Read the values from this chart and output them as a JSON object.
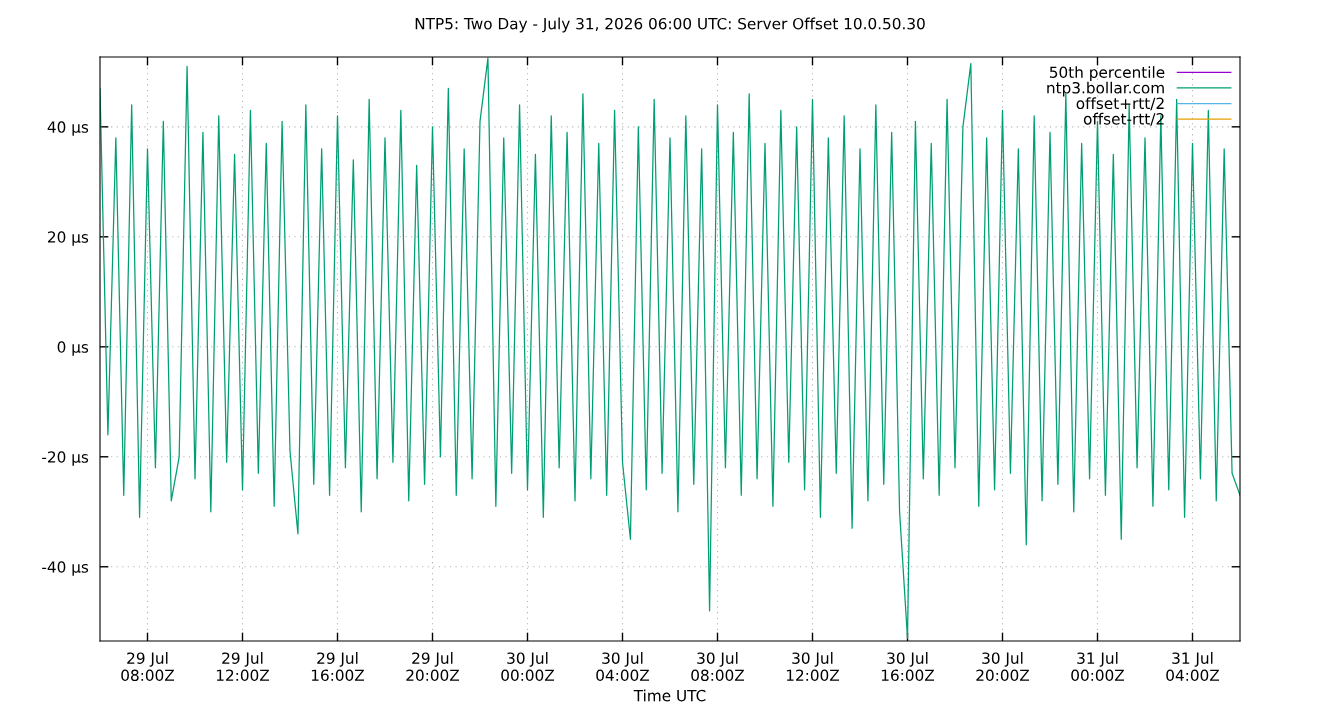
{
  "chart_data": {
    "type": "line",
    "title": "NTP5: Two Day - July 31, 2026 06:00 UTC: Server Offset 10.0.50.30",
    "xlabel": "Time UTC",
    "xlim": [
      "2026-07-29T06:00",
      "2026-07-31T06:00"
    ],
    "xticks": [
      {
        "value": "2026-07-29T08:00",
        "label": "29 Jul\n08:00Z"
      },
      {
        "value": "2026-07-29T12:00",
        "label": "29 Jul\n12:00Z"
      },
      {
        "value": "2026-07-29T16:00",
        "label": "29 Jul\n16:00Z"
      },
      {
        "value": "2026-07-29T20:00",
        "label": "29 Jul\n20:00Z"
      },
      {
        "value": "2026-07-30T00:00",
        "label": "30 Jul\n00:00Z"
      },
      {
        "value": "2026-07-30T04:00",
        "label": "30 Jul\n04:00Z"
      },
      {
        "value": "2026-07-30T08:00",
        "label": "30 Jul\n08:00Z"
      },
      {
        "value": "2026-07-30T12:00",
        "label": "30 Jul\n12:00Z"
      },
      {
        "value": "2026-07-30T16:00",
        "label": "30 Jul\n16:00Z"
      },
      {
        "value": "2026-07-30T20:00",
        "label": "30 Jul\n20:00Z"
      },
      {
        "value": "2026-07-31T00:00",
        "label": "31 Jul\n00:00Z"
      },
      {
        "value": "2026-07-31T04:00",
        "label": "31 Jul\n04:00Z"
      }
    ],
    "ylim": [
      -53.5,
      52.7
    ],
    "yticks": [
      {
        "value": -40,
        "label": "-40 µs"
      },
      {
        "value": -20,
        "label": "-20 µs"
      },
      {
        "value": 0,
        "label": "0 µs"
      },
      {
        "value": 20,
        "label": "20 µs"
      },
      {
        "value": 40,
        "label": "40 µs"
      }
    ],
    "grid": true,
    "legend": "top right",
    "line_style": "solid",
    "x": [
      "2026-07-29T06:00",
      "2026-07-29T06:20",
      "2026-07-29T06:40",
      "2026-07-29T07:00",
      "2026-07-29T07:20",
      "2026-07-29T07:40",
      "2026-07-29T08:00",
      "2026-07-29T08:20",
      "2026-07-29T08:40",
      "2026-07-29T09:00",
      "2026-07-29T09:20",
      "2026-07-29T09:40",
      "2026-07-29T10:00",
      "2026-07-29T10:20",
      "2026-07-29T10:40",
      "2026-07-29T11:00",
      "2026-07-29T11:20",
      "2026-07-29T11:40",
      "2026-07-29T12:00",
      "2026-07-29T12:20",
      "2026-07-29T12:40",
      "2026-07-29T13:00",
      "2026-07-29T13:20",
      "2026-07-29T13:40",
      "2026-07-29T14:00",
      "2026-07-29T14:20",
      "2026-07-29T14:40",
      "2026-07-29T15:00",
      "2026-07-29T15:20",
      "2026-07-29T15:40",
      "2026-07-29T16:00",
      "2026-07-29T16:20",
      "2026-07-29T16:40",
      "2026-07-29T17:00",
      "2026-07-29T17:20",
      "2026-07-29T17:40",
      "2026-07-29T18:00",
      "2026-07-29T18:20",
      "2026-07-29T18:40",
      "2026-07-29T19:00",
      "2026-07-29T19:20",
      "2026-07-29T19:40",
      "2026-07-29T20:00",
      "2026-07-29T20:20",
      "2026-07-29T20:40",
      "2026-07-29T21:00",
      "2026-07-29T21:20",
      "2026-07-29T21:40",
      "2026-07-29T22:00",
      "2026-07-29T22:20",
      "2026-07-29T22:40",
      "2026-07-29T23:00",
      "2026-07-29T23:20",
      "2026-07-29T23:40",
      "2026-07-30T00:00",
      "2026-07-30T00:20",
      "2026-07-30T00:40",
      "2026-07-30T01:00",
      "2026-07-30T01:20",
      "2026-07-30T01:40",
      "2026-07-30T02:00",
      "2026-07-30T02:20",
      "2026-07-30T02:40",
      "2026-07-30T03:00",
      "2026-07-30T03:20",
      "2026-07-30T03:40",
      "2026-07-30T04:00",
      "2026-07-30T04:20",
      "2026-07-30T04:40",
      "2026-07-30T05:00",
      "2026-07-30T05:20",
      "2026-07-30T05:40",
      "2026-07-30T06:00",
      "2026-07-30T06:20",
      "2026-07-30T06:40",
      "2026-07-30T07:00",
      "2026-07-30T07:20",
      "2026-07-30T07:40",
      "2026-07-30T08:00",
      "2026-07-30T08:20",
      "2026-07-30T08:40",
      "2026-07-30T09:00",
      "2026-07-30T09:20",
      "2026-07-30T09:40",
      "2026-07-30T10:00",
      "2026-07-30T10:20",
      "2026-07-30T10:40",
      "2026-07-30T11:00",
      "2026-07-30T11:20",
      "2026-07-30T11:40",
      "2026-07-30T12:00",
      "2026-07-30T12:20",
      "2026-07-30T12:40",
      "2026-07-30T13:00",
      "2026-07-30T13:20",
      "2026-07-30T13:40",
      "2026-07-30T14:00",
      "2026-07-30T14:20",
      "2026-07-30T14:40",
      "2026-07-30T15:00",
      "2026-07-30T15:20",
      "2026-07-30T15:40",
      "2026-07-30T16:00",
      "2026-07-30T16:20",
      "2026-07-30T16:40",
      "2026-07-30T17:00",
      "2026-07-30T17:20",
      "2026-07-30T17:40",
      "2026-07-30T18:00",
      "2026-07-30T18:20",
      "2026-07-30T18:40",
      "2026-07-30T19:00",
      "2026-07-30T19:20",
      "2026-07-30T19:40",
      "2026-07-30T20:00",
      "2026-07-30T20:20",
      "2026-07-30T20:40",
      "2026-07-30T21:00",
      "2026-07-30T21:20",
      "2026-07-30T21:40",
      "2026-07-30T22:00",
      "2026-07-30T22:20",
      "2026-07-30T22:40",
      "2026-07-30T23:00",
      "2026-07-30T23:20",
      "2026-07-30T23:40",
      "2026-07-31T00:00",
      "2026-07-31T00:20",
      "2026-07-31T00:40",
      "2026-07-31T01:00",
      "2026-07-31T01:20",
      "2026-07-31T01:40",
      "2026-07-31T02:00",
      "2026-07-31T02:20",
      "2026-07-31T02:40",
      "2026-07-31T03:00",
      "2026-07-31T03:20",
      "2026-07-31T03:40",
      "2026-07-31T04:00",
      "2026-07-31T04:20",
      "2026-07-31T04:40",
      "2026-07-31T05:00",
      "2026-07-31T05:20",
      "2026-07-31T05:40",
      "2026-07-31T06:00"
    ],
    "series": [
      {
        "name": "50th percentile",
        "color": "#9400d3",
        "values": [
          null,
          null,
          null,
          null,
          null,
          null,
          null,
          null,
          null,
          null,
          null,
          null,
          null,
          null,
          null,
          null,
          null,
          null,
          null,
          null,
          null,
          null,
          null,
          null,
          null,
          null,
          null,
          null,
          null,
          null,
          null,
          null,
          null,
          null,
          null,
          null,
          null,
          null,
          null,
          null,
          null,
          null,
          null,
          null,
          null,
          null,
          null,
          null,
          null,
          null,
          null,
          null,
          null,
          null,
          null,
          null,
          null,
          null,
          null,
          null,
          null,
          null,
          null,
          null,
          null,
          null,
          null,
          null,
          null,
          null,
          null,
          null,
          null,
          null,
          null,
          null,
          null,
          null,
          null,
          null,
          null,
          null,
          null,
          null,
          null,
          null,
          null,
          null,
          null,
          null,
          null,
          null,
          null,
          null,
          null,
          null,
          null,
          null,
          null,
          null,
          null,
          null,
          null,
          null,
          null,
          null,
          null,
          null,
          null,
          null,
          null,
          null,
          null,
          null,
          null,
          null,
          null,
          null,
          null,
          null,
          null,
          null,
          null,
          null,
          null,
          null,
          null,
          null,
          null,
          null,
          null,
          null,
          null,
          null,
          null,
          null,
          null,
          null,
          null,
          null,
          null,
          null,
          null,
          null,
          null
        ]
      },
      {
        "name": "ntp3.bollar.com",
        "color": "#009e73",
        "values": [
          47,
          -16,
          38,
          -27,
          44,
          -31,
          36,
          -22,
          41,
          -28,
          -20,
          51,
          -24,
          39,
          -30,
          42,
          -21,
          35,
          -26,
          43,
          -23,
          37,
          -29,
          41,
          -19,
          -34,
          44,
          -25,
          36,
          -27,
          42,
          -22,
          34,
          -30,
          45,
          -24,
          38,
          -21,
          43,
          -28,
          33,
          -25,
          40,
          -20,
          47,
          -27,
          36,
          -24,
          41,
          52.5,
          -29,
          38,
          -23,
          44,
          -26,
          35,
          -31,
          42,
          -22,
          39,
          -28,
          46,
          -24,
          37,
          -27,
          43,
          -21,
          -35,
          40,
          -26,
          45,
          -23,
          38,
          -30,
          42,
          -25,
          36,
          -48,
          44,
          -22,
          39,
          -27,
          46,
          -24,
          37,
          -29,
          43,
          -21,
          40,
          -26,
          45,
          -31,
          38,
          -23,
          42,
          -33,
          36,
          -28,
          44,
          -25,
          39,
          -30,
          -53,
          41,
          -24,
          37,
          -27,
          45,
          -22,
          40,
          51.5,
          -29,
          38,
          -26,
          43,
          -23,
          36,
          -36,
          42,
          -28,
          39,
          -25,
          46,
          -30,
          37,
          -24,
          41,
          -27,
          35,
          -35,
          44,
          -22,
          38,
          -29,
          42,
          -26,
          45,
          -31,
          37,
          -24,
          43,
          -28,
          36,
          -23,
          -27
        ]
      },
      {
        "name": "offset+rtt/2",
        "color": "#56b4e9",
        "values": [
          null,
          null,
          null,
          null,
          null,
          null,
          null,
          null,
          null,
          null,
          null,
          null,
          null,
          null,
          null,
          null,
          null,
          null,
          null,
          null,
          null,
          null,
          null,
          null,
          null,
          null,
          null,
          null,
          null,
          null,
          null,
          null,
          null,
          null,
          null,
          null,
          null,
          null,
          null,
          null,
          null,
          null,
          null,
          null,
          null,
          null,
          null,
          null,
          null,
          null,
          null,
          null,
          null,
          null,
          null,
          null,
          null,
          null,
          null,
          null,
          null,
          null,
          null,
          null,
          null,
          null,
          null,
          null,
          null,
          null,
          null,
          null,
          null,
          null,
          null,
          null,
          null,
          null,
          null,
          null,
          null,
          null,
          null,
          null,
          null,
          null,
          null,
          null,
          null,
          null,
          null,
          null,
          null,
          null,
          null,
          null,
          null,
          null,
          null,
          null,
          null,
          null,
          null,
          null,
          null,
          null,
          null,
          null,
          null,
          null,
          null,
          null,
          null,
          null,
          null,
          null,
          null,
          null,
          null,
          null,
          null,
          null,
          null,
          null,
          null,
          null,
          null,
          null,
          null,
          null,
          null,
          null,
          null,
          null,
          null,
          null,
          null,
          null,
          null,
          null,
          null,
          null,
          null,
          null,
          null
        ]
      },
      {
        "name": "offset-rtt/2",
        "color": "#e69f00",
        "values": [
          null,
          null,
          null,
          null,
          null,
          null,
          null,
          null,
          null,
          null,
          null,
          null,
          null,
          null,
          null,
          null,
          null,
          null,
          null,
          null,
          null,
          null,
          null,
          null,
          null,
          null,
          null,
          null,
          null,
          null,
          null,
          null,
          null,
          null,
          null,
          null,
          null,
          null,
          null,
          null,
          null,
          null,
          null,
          null,
          null,
          null,
          null,
          null,
          null,
          null,
          null,
          null,
          null,
          null,
          null,
          null,
          null,
          null,
          null,
          null,
          null,
          null,
          null,
          null,
          null,
          null,
          null,
          null,
          null,
          null,
          null,
          null,
          null,
          null,
          null,
          null,
          null,
          null,
          null,
          null,
          null,
          null,
          null,
          null,
          null,
          null,
          null,
          null,
          null,
          null,
          null,
          null,
          null,
          null,
          null,
          null,
          null,
          null,
          null,
          null,
          null,
          null,
          null,
          null,
          null,
          null,
          null,
          null,
          null,
          null,
          null,
          null,
          null,
          null,
          null,
          null,
          null,
          null,
          null,
          null,
          null,
          null,
          null,
          null,
          null,
          null,
          null,
          null,
          null,
          null,
          null,
          null,
          null,
          null,
          null,
          null,
          null,
          null,
          null,
          null,
          null,
          null,
          null,
          null,
          null
        ]
      }
    ]
  }
}
